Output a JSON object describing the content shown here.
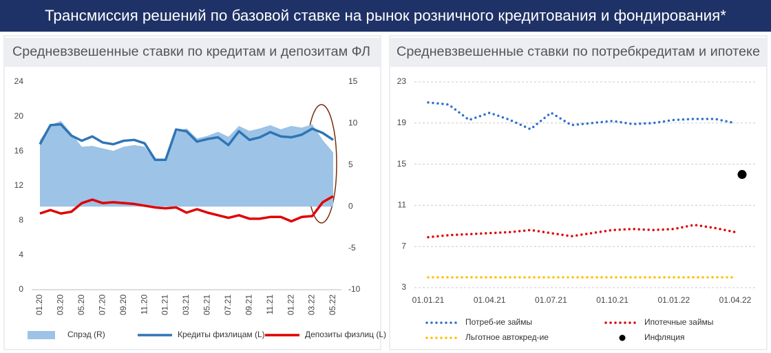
{
  "header": {
    "title": "Трансмиссия решений по базовой ставке на рынок розничного кредитования и фондирования*"
  },
  "chart_data": [
    {
      "type": "line",
      "title": "Средневзвешенные ставки по кредитам и депозитам ФЛ",
      "categories": [
        "01.20",
        null,
        "03.20",
        null,
        "05.20",
        null,
        "07.20",
        null,
        "09.20",
        null,
        "11.20",
        null,
        "01.21",
        null,
        "03.21",
        null,
        "05.21",
        null,
        "07.21",
        null,
        "09.21",
        null,
        "11.21",
        null,
        "01.22",
        null,
        "03.22",
        null,
        "05.22"
      ],
      "series": [
        {
          "name": "Спрэд (R)",
          "type": "area",
          "axis": "y2",
          "color": "#9dc3e6",
          "values": [
            8.0,
            9.8,
            10.3,
            8.8,
            7.2,
            7.3,
            7.0,
            6.7,
            7.2,
            7.4,
            7.2,
            5.5,
            5.6,
            9.0,
            9.4,
            8.2,
            8.5,
            9.0,
            8.4,
            9.7,
            9.1,
            9.4,
            9.8,
            9.3,
            9.7,
            9.5,
            9.9,
            8.0,
            6.5
          ]
        },
        {
          "name": "Кредиты физлицам (L)",
          "type": "line",
          "color": "#2e75b6",
          "values": [
            16.8,
            19.0,
            19.1,
            17.8,
            17.2,
            17.7,
            17.0,
            16.8,
            17.2,
            17.3,
            16.9,
            15.0,
            15.0,
            18.5,
            18.3,
            17.1,
            17.4,
            17.6,
            16.7,
            18.3,
            17.3,
            17.6,
            18.2,
            17.7,
            17.6,
            17.9,
            18.6,
            18.1,
            17.3
          ]
        },
        {
          "name": "Депозиты физлиц (L)",
          "type": "line",
          "color": "#e00000",
          "values": [
            8.8,
            9.2,
            8.8,
            9.0,
            10.0,
            10.4,
            10.0,
            10.1,
            10.0,
            9.9,
            9.7,
            9.5,
            9.4,
            9.5,
            8.9,
            9.3,
            8.9,
            8.6,
            8.3,
            8.6,
            8.2,
            8.2,
            8.4,
            8.4,
            7.9,
            8.4,
            8.5,
            10.1,
            10.8
          ]
        }
      ],
      "ylim": [
        0,
        24
      ],
      "yticks": [
        0,
        4,
        8,
        12,
        16,
        20,
        24
      ],
      "y2lim": [
        -10,
        15
      ],
      "y2ticks": [
        -10,
        -5,
        0,
        5,
        10,
        15
      ],
      "grid": false,
      "line_style": "solid",
      "xtick_rotation": 90
    },
    {
      "type": "line",
      "title": "Средневзвешенные ставки по потребкредитам и ипотеке",
      "categories": [
        "01.01.21",
        null,
        null,
        "01.04.21",
        null,
        null,
        "01.07.21",
        null,
        null,
        "01.10.21",
        null,
        null,
        "01.01.22",
        null,
        null,
        "01.04.22"
      ],
      "series": [
        {
          "name": "Потреб-ие займы",
          "type": "line",
          "color": "#2f6fd0",
          "values": [
            21.0,
            20.8,
            19.3,
            20.0,
            19.3,
            18.4,
            20.0,
            18.8,
            19.0,
            19.2,
            18.9,
            19.0,
            19.3,
            19.4,
            19.4,
            19.0
          ]
        },
        {
          "name": "Ипотечные займы",
          "type": "line",
          "color": "#e00000",
          "values": [
            7.9,
            8.1,
            8.2,
            8.3,
            8.4,
            8.6,
            8.3,
            8.0,
            8.3,
            8.6,
            8.7,
            8.6,
            8.7,
            9.1,
            8.8,
            8.4
          ]
        },
        {
          "name": "Льготное автокред-ие",
          "type": "line",
          "color": "#ffc000",
          "values": [
            4,
            4,
            4,
            4,
            4,
            4,
            4,
            4,
            4,
            4,
            4,
            4,
            4,
            4,
            4,
            4
          ]
        },
        {
          "name": "Инфляция",
          "type": "scatter",
          "color": "#000000",
          "values": [
            null,
            null,
            null,
            null,
            null,
            null,
            null,
            null,
            null,
            null,
            null,
            null,
            null,
            null,
            null,
            14.0
          ]
        }
      ],
      "ylim": [
        3,
        23
      ],
      "yticks": [
        3,
        7,
        11,
        15,
        19,
        23
      ],
      "grid": true,
      "line_style": "dotted",
      "xtick_rotation": 0
    }
  ]
}
